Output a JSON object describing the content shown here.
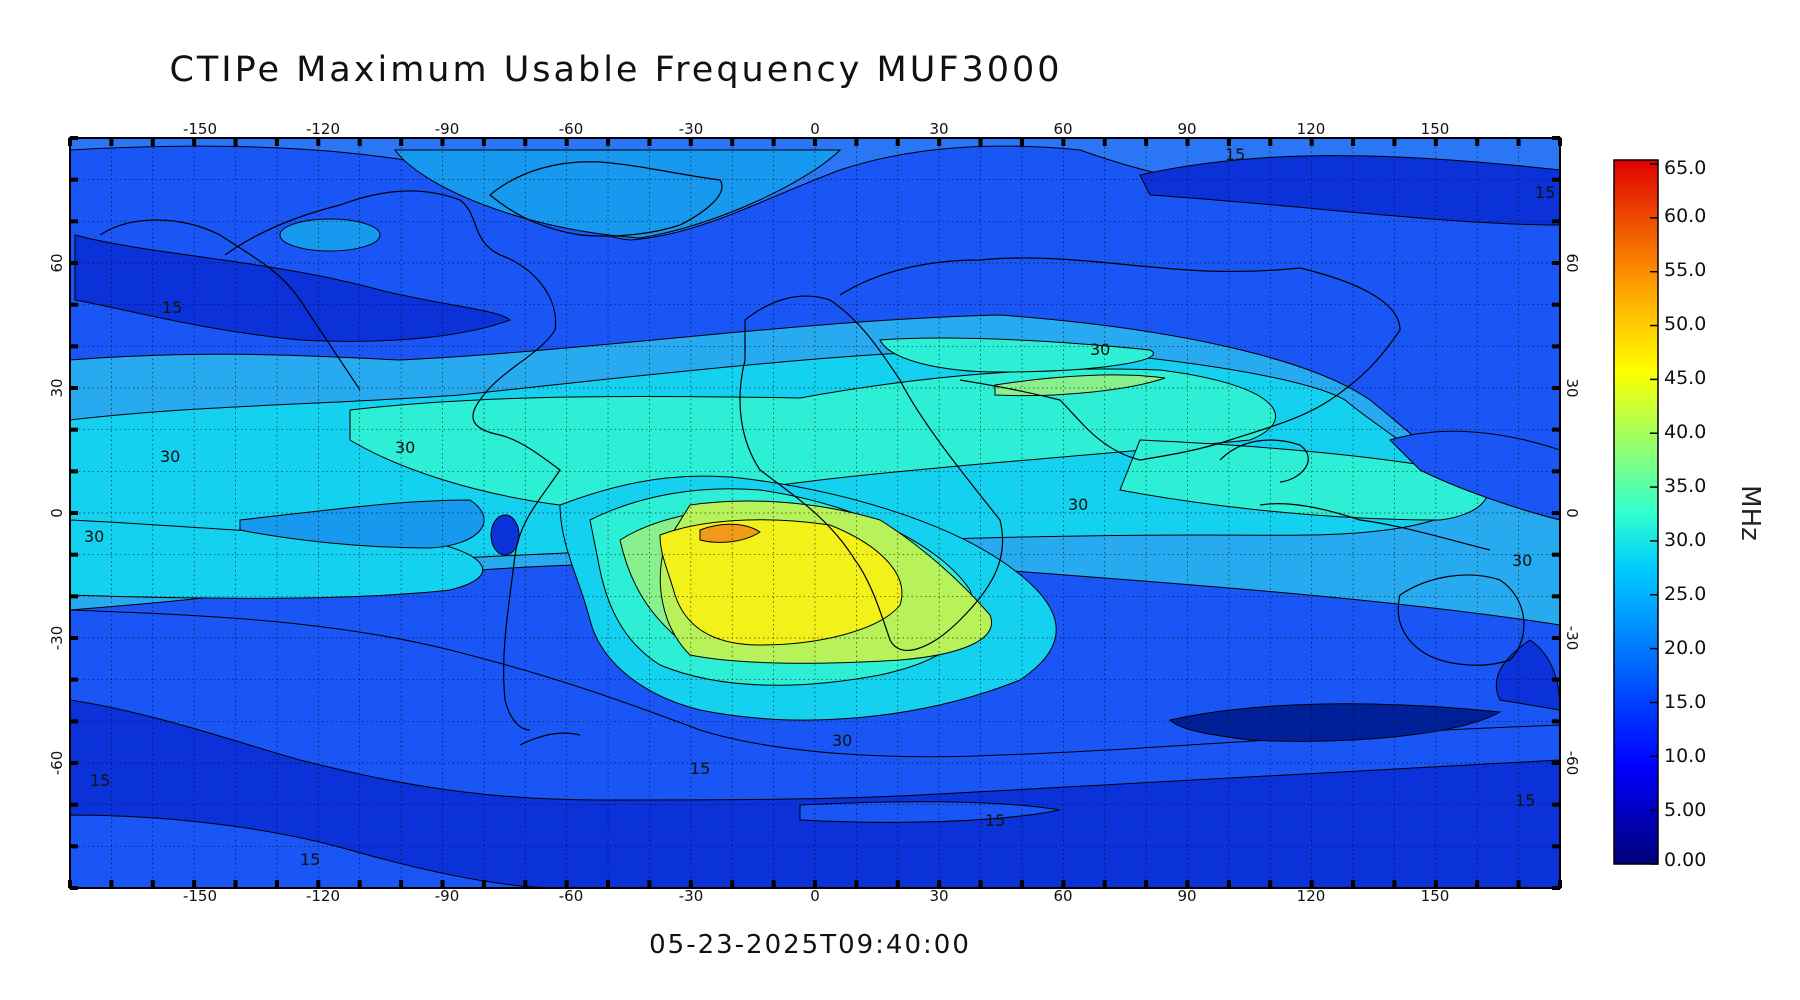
{
  "title": "CTIPe Maximum Usable Frequency MUF3000",
  "timestamp": "05-23-2025T09:40:00",
  "x_ticks": [
    "-150",
    "-120",
    "-90",
    "-60",
    "-30",
    "0",
    "30",
    "60",
    "90",
    "120",
    "150"
  ],
  "y_ticks": [
    "60",
    "30",
    "0",
    "-30",
    "-60"
  ],
  "colorbar": {
    "unit": "MHz",
    "labels": [
      "65.0",
      "60.0",
      "55.0",
      "50.0",
      "45.0",
      "40.0",
      "35.0",
      "30.0",
      "25.0",
      "20.0",
      "15.0",
      "10.0",
      "5.00",
      "0.00"
    ],
    "min": 0,
    "max": 65,
    "colors": [
      "#00008a",
      "#0000e6",
      "#0040ff",
      "#0080ff",
      "#00b0ff",
      "#00e0ff",
      "#40ffd0",
      "#80ff80",
      "#c0ff40",
      "#ffff00",
      "#ffc000",
      "#ff8000",
      "#ff4000",
      "#e00000"
    ]
  },
  "contour_labels": [
    "15",
    "15",
    "15",
    "15",
    "15",
    "15",
    "15",
    "15",
    "30",
    "30",
    "30",
    "30",
    "30",
    "30",
    "30"
  ],
  "colors": {
    "frame": "#000000",
    "grid": "#000000"
  }
}
